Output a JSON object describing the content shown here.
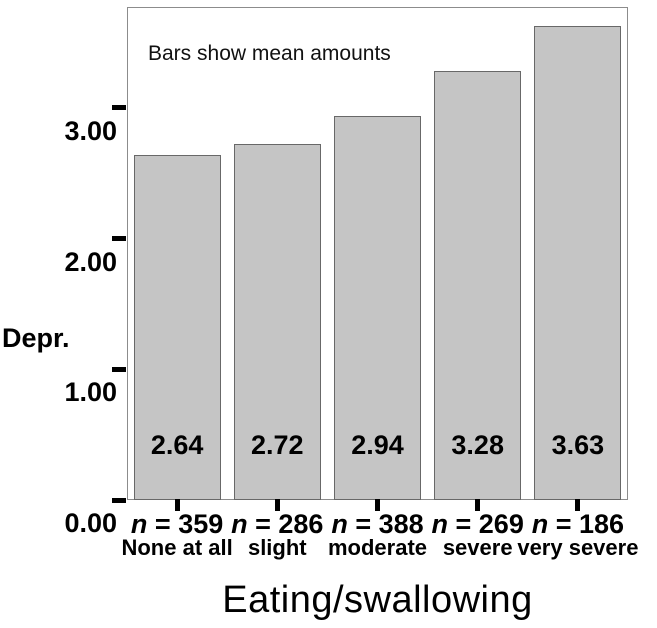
{
  "chart_data": {
    "type": "bar",
    "annotation": "Bars show mean amounts",
    "xlabel": "Eating/swallowing",
    "ylabel": "Depr.",
    "categories": [
      "None at all",
      "slight",
      "moderate",
      "severe",
      "very severe"
    ],
    "values": [
      2.64,
      2.72,
      2.94,
      3.28,
      3.63
    ],
    "value_labels": [
      "2.64",
      "2.72",
      "2.94",
      "3.28",
      "3.63"
    ],
    "n_symbol": "n",
    "n_values": [
      359,
      286,
      388,
      269,
      186
    ],
    "n_labels": [
      " = 359",
      " = 286",
      " = 388",
      " = 269",
      " = 186"
    ],
    "y_ticks": [
      {
        "value": 0,
        "label": "0.00"
      },
      {
        "value": 1,
        "label": "1.00"
      },
      {
        "value": 2,
        "label": "2.00"
      },
      {
        "value": 3,
        "label": "3.00"
      }
    ],
    "ylim": [
      0,
      3.772
    ],
    "grid": false,
    "legend": false,
    "colors": {
      "bar_fill": "#c5c5c5",
      "bar_border": "#686868",
      "frame": "#8c8c8c",
      "tick": "#000000",
      "text": "#000000",
      "background": "#ffffff"
    }
  }
}
